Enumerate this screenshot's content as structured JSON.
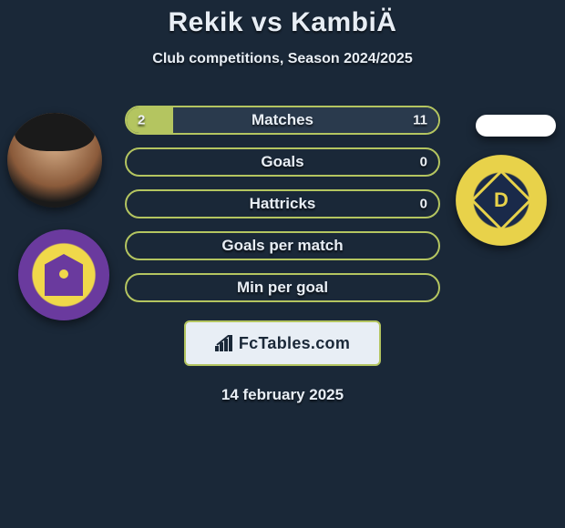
{
  "header": {
    "title": "Rekik vs KambiÄ",
    "subtitle": "Club competitions, Season 2024/2025"
  },
  "stats": {
    "rows": [
      {
        "label": "Matches",
        "left_val": "2",
        "right_val": "11",
        "left_pct": 15,
        "right_pct": 85
      },
      {
        "label": "Goals",
        "left_val": "",
        "right_val": "0",
        "left_pct": 0,
        "right_pct": 0
      },
      {
        "label": "Hattricks",
        "left_val": "",
        "right_val": "0",
        "left_pct": 0,
        "right_pct": 0
      },
      {
        "label": "Goals per match",
        "left_val": "",
        "right_val": "",
        "left_pct": 0,
        "right_pct": 0
      },
      {
        "label": "Min per goal",
        "left_val": "",
        "right_val": "",
        "left_pct": 0,
        "right_pct": 0
      }
    ],
    "bar_border_color": "#b4c560",
    "bar_left_fill": "#b4c560",
    "bar_right_fill": "#2a3a4d",
    "text_color": "#e8eef5",
    "label_fontsize": 17,
    "value_fontsize": 15
  },
  "brand": {
    "text": "FcTables.com",
    "box_bg": "#e8eef5",
    "box_border": "#b4c560",
    "text_color": "#1a2838"
  },
  "date": "14 february 2025",
  "clubs": {
    "right_letter": "D"
  },
  "theme": {
    "page_bg": "#1a2838",
    "accent": "#b4c560"
  }
}
